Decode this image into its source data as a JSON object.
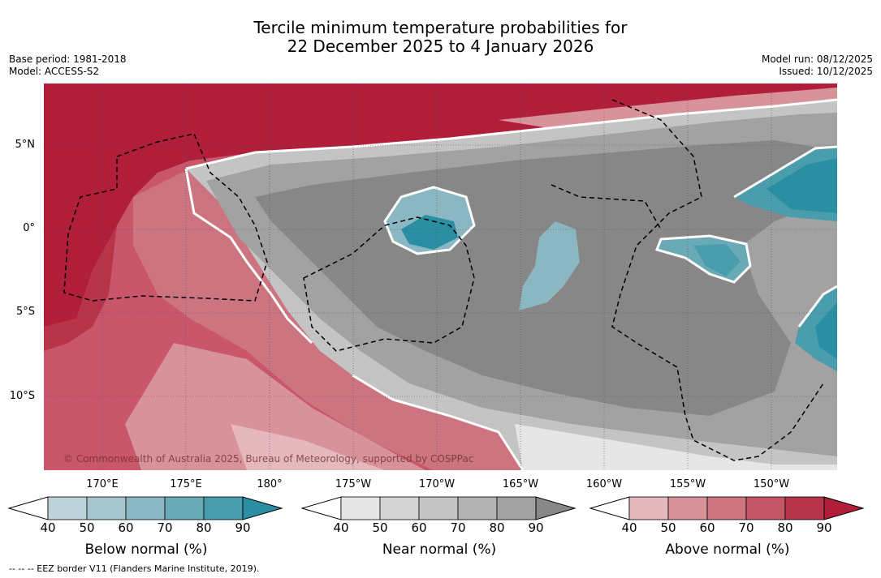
{
  "title_line1": "Tercile minimum temperature probabilities for",
  "title_line2": "22 December 2025 to 4 January 2026",
  "base_period": "Base period: 1981-2018",
  "model": "Model: ACCESS-S2",
  "model_run": "Model run: 08/12/2025",
  "issued": "Issued: 10/12/2025",
  "lat_labels": [
    "5°N",
    "0°",
    "5°S",
    "10°S"
  ],
  "lon_labels": [
    "170°E",
    "175°E",
    "180°",
    "175°W",
    "170°W",
    "165°W",
    "160°W",
    "155°W",
    "150°W"
  ],
  "copyright": "© Commonwealth of Australia 2025, Bureau of Meteorology, supported by COSPPac",
  "footer": "-- -- -- EEZ border V11 (Flanders Marine Institute, 2019).",
  "colorbars": [
    {
      "title": "Below normal (%)",
      "ticks": [
        "40",
        "50",
        "60",
        "70",
        "80",
        "90"
      ],
      "colors": [
        "#bdd3da",
        "#a5c6ce",
        "#8ab7c2",
        "#6aa9b6",
        "#4a9dac",
        "#2a8fa3"
      ]
    },
    {
      "title": "Near normal (%)",
      "ticks": [
        "40",
        "50",
        "60",
        "70",
        "80",
        "90"
      ],
      "colors": [
        "#e6e6e6",
        "#d4d4d4",
        "#c4c4c4",
        "#b3b3b3",
        "#a2a2a2",
        "#878787"
      ]
    },
    {
      "title": "Above normal (%)",
      "ticks": [
        "40",
        "50",
        "60",
        "70",
        "80",
        "90"
      ],
      "colors": [
        "#e5b8bd",
        "#d8939a",
        "#cc7580",
        "#c45566",
        "#b83449",
        "#b01e3a"
      ]
    }
  ]
}
